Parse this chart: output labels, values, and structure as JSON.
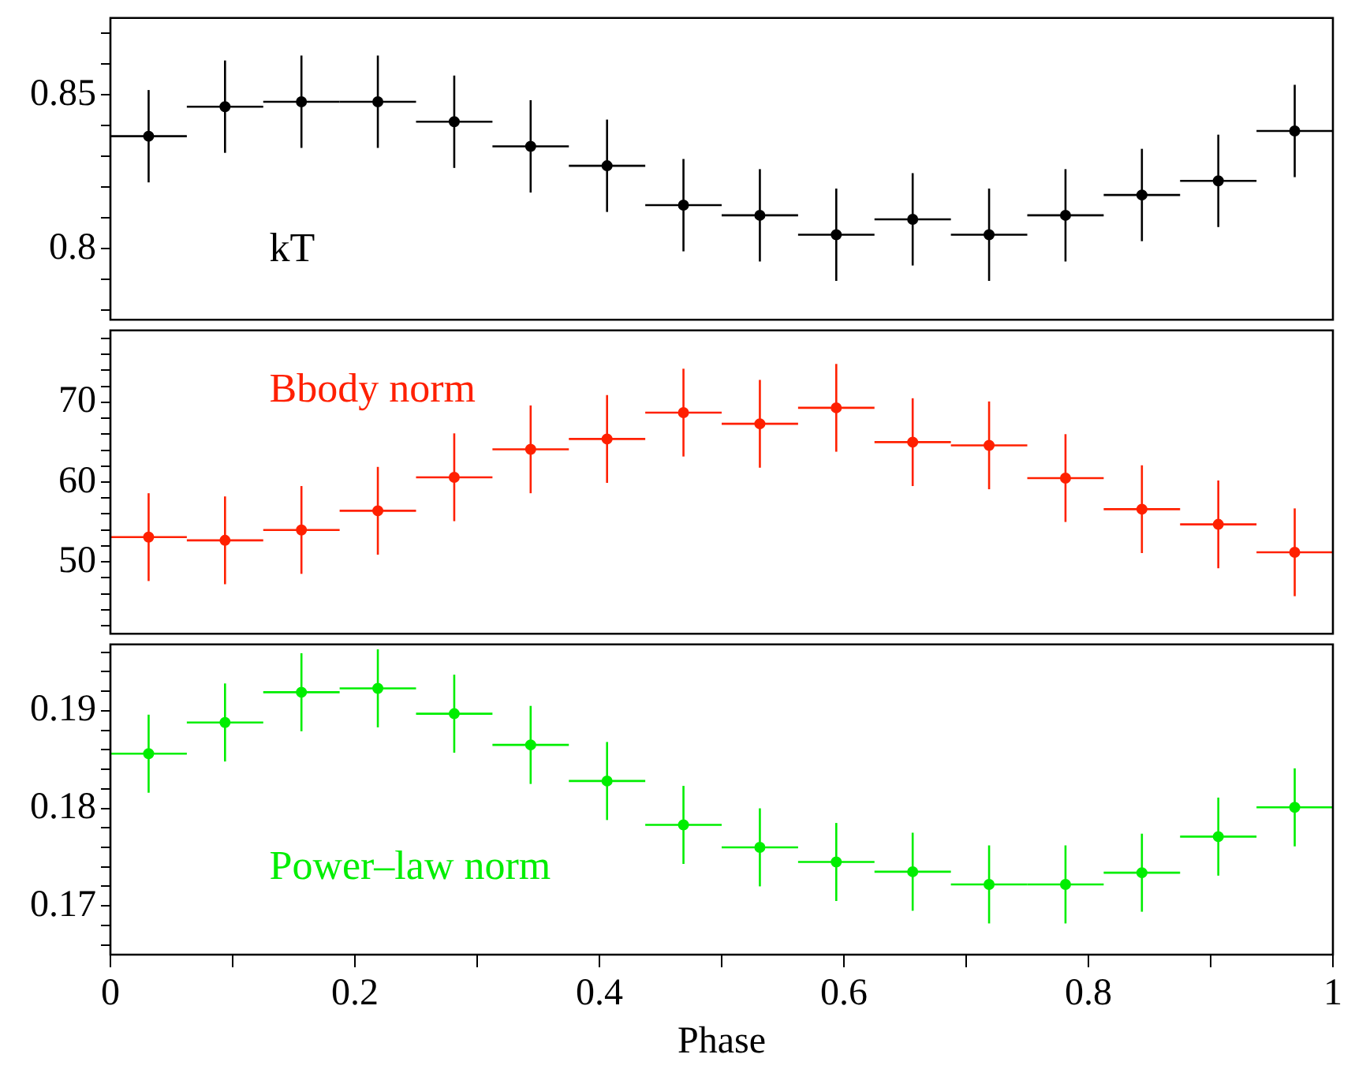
{
  "chart_data": [
    {
      "type": "scatter",
      "marker": "circle",
      "color": "#000000",
      "annotations": [
        "kT"
      ],
      "x": [
        0.03125,
        0.09375,
        0.15625,
        0.21875,
        0.28125,
        0.34375,
        0.40625,
        0.46875,
        0.53125,
        0.59375,
        0.65625,
        0.71875,
        0.78125,
        0.84375,
        0.90625,
        0.96875
      ],
      "values": [
        0.8366,
        0.8462,
        0.8478,
        0.8478,
        0.8413,
        0.8333,
        0.827,
        0.8142,
        0.8109,
        0.8046,
        0.8096,
        0.8046,
        0.8109,
        0.8175,
        0.8221,
        0.8383
      ],
      "errors": [
        0.015,
        0.015,
        0.015,
        0.015,
        0.015,
        0.015,
        0.015,
        0.015,
        0.015,
        0.015,
        0.015,
        0.015,
        0.015,
        0.015,
        0.015,
        0.015
      ],
      "xerrors": [
        0.03125,
        0.03125,
        0.03125,
        0.03125,
        0.03125,
        0.03125,
        0.03125,
        0.03125,
        0.03125,
        0.03125,
        0.03125,
        0.03125,
        0.03125,
        0.03125,
        0.03125,
        0.03125
      ],
      "xlim": [
        0,
        1
      ],
      "xticks": [
        0,
        0.2,
        0.4,
        0.6,
        0.8,
        1
      ],
      "ylim": [
        0.777,
        0.875
      ],
      "yticks": [
        {
          "value": 0.78,
          "label": null
        },
        {
          "value": 0.79,
          "label": null
        },
        0.8,
        {
          "value": 0.81,
          "label": null
        },
        {
          "value": 0.82,
          "label": null
        },
        {
          "value": 0.83,
          "label": null
        },
        {
          "value": 0.84,
          "label": null
        },
        0.85,
        {
          "value": 0.86,
          "label": null
        },
        {
          "value": 0.87,
          "label": null
        }
      ],
      "tick_labels": "y"
    },
    {
      "type": "scatter",
      "marker": "circle",
      "color": "#ff2000",
      "annotations": [
        "Bbody norm"
      ],
      "x": [
        0.03125,
        0.09375,
        0.15625,
        0.21875,
        0.28125,
        0.34375,
        0.40625,
        0.46875,
        0.53125,
        0.59375,
        0.65625,
        0.71875,
        0.78125,
        0.84375,
        0.90625,
        0.96875
      ],
      "values": [
        53.1,
        52.7,
        54.0,
        56.4,
        60.6,
        64.1,
        65.4,
        68.7,
        67.3,
        69.3,
        65.0,
        64.6,
        60.5,
        56.6,
        54.7,
        51.2
      ],
      "errors": [
        5.5,
        5.5,
        5.5,
        5.5,
        5.5,
        5.5,
        5.5,
        5.5,
        5.5,
        5.5,
        5.5,
        5.5,
        5.5,
        5.5,
        5.5,
        5.5
      ],
      "xerrors": [
        0.03125,
        0.03125,
        0.03125,
        0.03125,
        0.03125,
        0.03125,
        0.03125,
        0.03125,
        0.03125,
        0.03125,
        0.03125,
        0.03125,
        0.03125,
        0.03125,
        0.03125,
        0.03125
      ],
      "xlim": [
        0,
        1
      ],
      "xticks": [
        0,
        0.2,
        0.4,
        0.6,
        0.8,
        1
      ],
      "ylim": [
        41,
        79
      ],
      "yticks": [
        {
          "value": 42,
          "label": null
        },
        {
          "value": 44,
          "label": null
        },
        {
          "value": 46,
          "label": null
        },
        {
          "value": 48,
          "label": null
        },
        50,
        {
          "value": 52,
          "label": null
        },
        {
          "value": 54,
          "label": null
        },
        {
          "value": 56,
          "label": null
        },
        {
          "value": 58,
          "label": null
        },
        60,
        {
          "value": 62,
          "label": null
        },
        {
          "value": 64,
          "label": null
        },
        {
          "value": 66,
          "label": null
        },
        {
          "value": 68,
          "label": null
        },
        70,
        {
          "value": 72,
          "label": null
        },
        {
          "value": 74,
          "label": null
        },
        {
          "value": 76,
          "label": null
        },
        {
          "value": 78,
          "label": null
        }
      ],
      "tick_labels": "y"
    },
    {
      "type": "scatter",
      "marker": "circle",
      "color": "#00ee00",
      "annotations": [
        "Power–law norm"
      ],
      "xlabel": "Phase",
      "x": [
        0.03125,
        0.09375,
        0.15625,
        0.21875,
        0.28125,
        0.34375,
        0.40625,
        0.46875,
        0.53125,
        0.59375,
        0.65625,
        0.71875,
        0.78125,
        0.84375,
        0.90625,
        0.96875
      ],
      "values": [
        0.1856,
        0.1888,
        0.1919,
        0.1923,
        0.1897,
        0.1865,
        0.1828,
        0.1783,
        0.176,
        0.1745,
        0.1735,
        0.1722,
        0.1722,
        0.1734,
        0.1771,
        0.1801
      ],
      "errors": [
        0.004,
        0.004,
        0.004,
        0.004,
        0.004,
        0.004,
        0.004,
        0.004,
        0.004,
        0.004,
        0.004,
        0.004,
        0.004,
        0.004,
        0.004,
        0.004
      ],
      "xerrors": [
        0.03125,
        0.03125,
        0.03125,
        0.03125,
        0.03125,
        0.03125,
        0.03125,
        0.03125,
        0.03125,
        0.03125,
        0.03125,
        0.03125,
        0.03125,
        0.03125,
        0.03125,
        0.03125
      ],
      "xlim": [
        0,
        1
      ],
      "xticks": [
        0,
        {
          "value": 0.1,
          "label": null
        },
        0.2,
        {
          "value": 0.3,
          "label": null
        },
        0.4,
        {
          "value": 0.5,
          "label": null
        },
        0.6,
        {
          "value": 0.7,
          "label": null
        },
        0.8,
        {
          "value": 0.9,
          "label": null
        },
        1
      ],
      "ylim": [
        0.165,
        0.1968
      ],
      "yticks": [
        {
          "value": 0.166,
          "label": null
        },
        {
          "value": 0.168,
          "label": null
        },
        0.17,
        {
          "value": 0.172,
          "label": null
        },
        {
          "value": 0.174,
          "label": null
        },
        {
          "value": 0.176,
          "label": null
        },
        {
          "value": 0.178,
          "label": null
        },
        0.18,
        {
          "value": 0.182,
          "label": null
        },
        {
          "value": 0.184,
          "label": null
        },
        {
          "value": 0.186,
          "label": null
        },
        {
          "value": 0.188,
          "label": null
        },
        0.19,
        {
          "value": 0.192,
          "label": null
        },
        {
          "value": 0.194,
          "label": null
        },
        {
          "value": 0.196,
          "label": null
        }
      ]
    }
  ]
}
